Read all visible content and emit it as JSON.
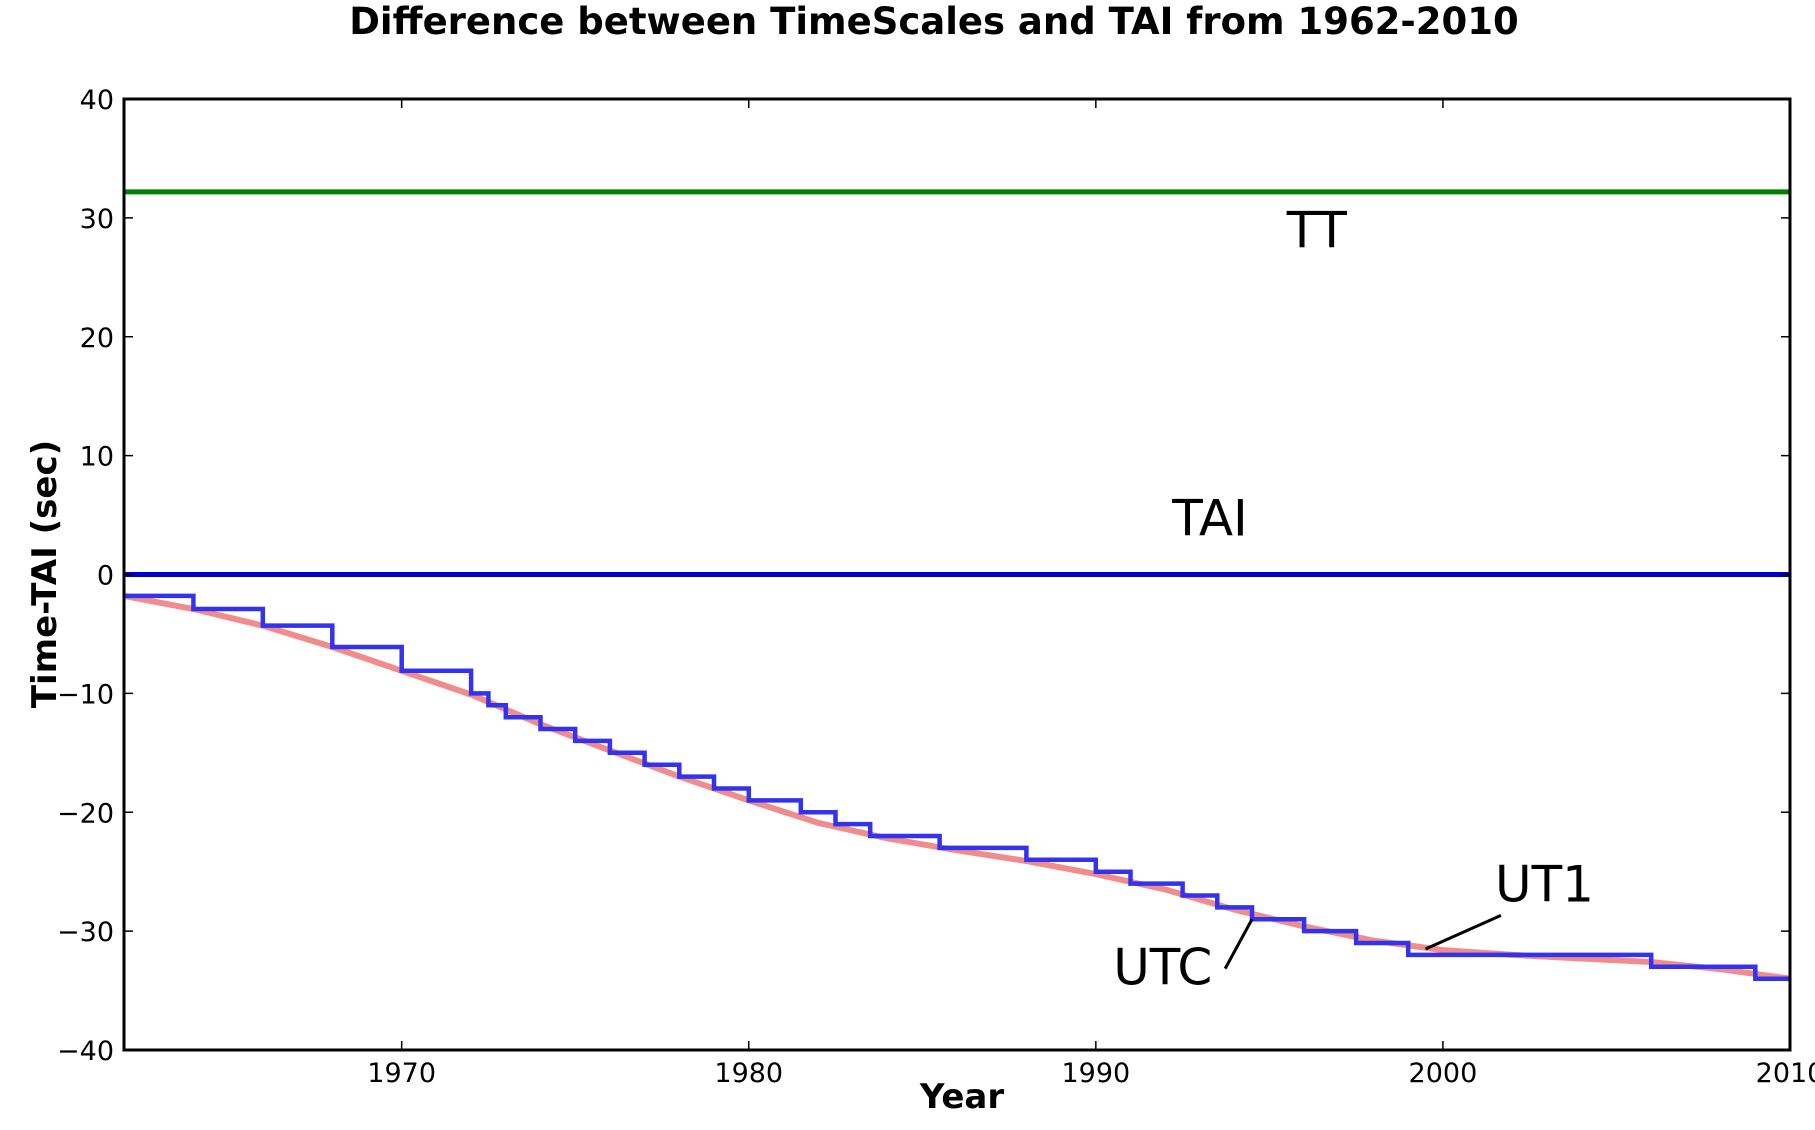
{
  "chart_data": {
    "type": "line",
    "title": "Difference between TimeScales and TAI from 1962-2010",
    "xlabel": "Year",
    "ylabel": "Time-TAI (sec)",
    "xlim": [
      1962,
      2010
    ],
    "ylim": [
      -40,
      40
    ],
    "xticks": [
      1970,
      1980,
      1990,
      2000,
      2010
    ],
    "yticks": [
      -40,
      -30,
      -20,
      -10,
      0,
      10,
      20,
      30,
      40
    ],
    "grid": false,
    "legend": "none",
    "series": [
      {
        "name": "TT",
        "color": "#008000",
        "kind": "line",
        "points": [
          [
            1962,
            32.184
          ],
          [
            2010,
            32.184
          ]
        ]
      },
      {
        "name": "TAI",
        "color": "#0000cc",
        "kind": "line",
        "points": [
          [
            1962,
            0
          ],
          [
            2010,
            0
          ]
        ]
      },
      {
        "name": "UT1",
        "color": "#f08080",
        "kind": "line",
        "points": [
          [
            1962,
            -1.8
          ],
          [
            1964,
            -2.9
          ],
          [
            1966,
            -4.3
          ],
          [
            1968,
            -6.1
          ],
          [
            1970,
            -8.1
          ],
          [
            1972,
            -10.1
          ],
          [
            1974,
            -12.6
          ],
          [
            1976,
            -14.8
          ],
          [
            1978,
            -17.0
          ],
          [
            1980,
            -19.0
          ],
          [
            1982,
            -20.9
          ],
          [
            1984,
            -22.2
          ],
          [
            1986,
            -23.2
          ],
          [
            1988,
            -24.1
          ],
          [
            1990,
            -25.2
          ],
          [
            1992,
            -26.5
          ],
          [
            1994,
            -28.2
          ],
          [
            1996,
            -29.6
          ],
          [
            1998,
            -30.8
          ],
          [
            2000,
            -31.6
          ],
          [
            2002,
            -32.0
          ],
          [
            2004,
            -32.3
          ],
          [
            2006,
            -32.6
          ],
          [
            2008,
            -33.2
          ],
          [
            2010,
            -34.0
          ]
        ]
      },
      {
        "name": "UTC",
        "color": "#3333ee",
        "kind": "step",
        "points": [
          [
            1962,
            -1.8
          ],
          [
            1964,
            -2.9
          ],
          [
            1966,
            -4.3
          ],
          [
            1968,
            -6.1
          ],
          [
            1970,
            -8.1
          ],
          [
            1972,
            -10
          ],
          [
            1972.5,
            -11
          ],
          [
            1973,
            -12
          ],
          [
            1974,
            -13
          ],
          [
            1975,
            -14
          ],
          [
            1976,
            -15
          ],
          [
            1977,
            -16
          ],
          [
            1978,
            -17
          ],
          [
            1979,
            -18
          ],
          [
            1980,
            -19
          ],
          [
            1981.5,
            -20
          ],
          [
            1982.5,
            -21
          ],
          [
            1983.5,
            -22
          ],
          [
            1985.5,
            -23
          ],
          [
            1988,
            -24
          ],
          [
            1990,
            -25
          ],
          [
            1991,
            -26
          ],
          [
            1992.5,
            -27
          ],
          [
            1993.5,
            -28
          ],
          [
            1994.5,
            -29
          ],
          [
            1996,
            -30
          ],
          [
            1997.5,
            -31
          ],
          [
            1999,
            -32
          ],
          [
            2006,
            -33
          ],
          [
            2009,
            -34
          ],
          [
            2010,
            -34
          ]
        ]
      }
    ],
    "annotations": [
      {
        "text": "TT",
        "x": 1995.5,
        "y": 27.5
      },
      {
        "text": "TAI",
        "x": 1992.2,
        "y": 3.3
      },
      {
        "text": "UT1",
        "x": 2001.5,
        "y": -27.5,
        "arrow_to": [
          1999.5,
          -31.5
        ]
      },
      {
        "text": "UTC",
        "x": 1990.5,
        "y": -34.5,
        "arrow_to": [
          1994.5,
          -29
        ]
      }
    ]
  }
}
